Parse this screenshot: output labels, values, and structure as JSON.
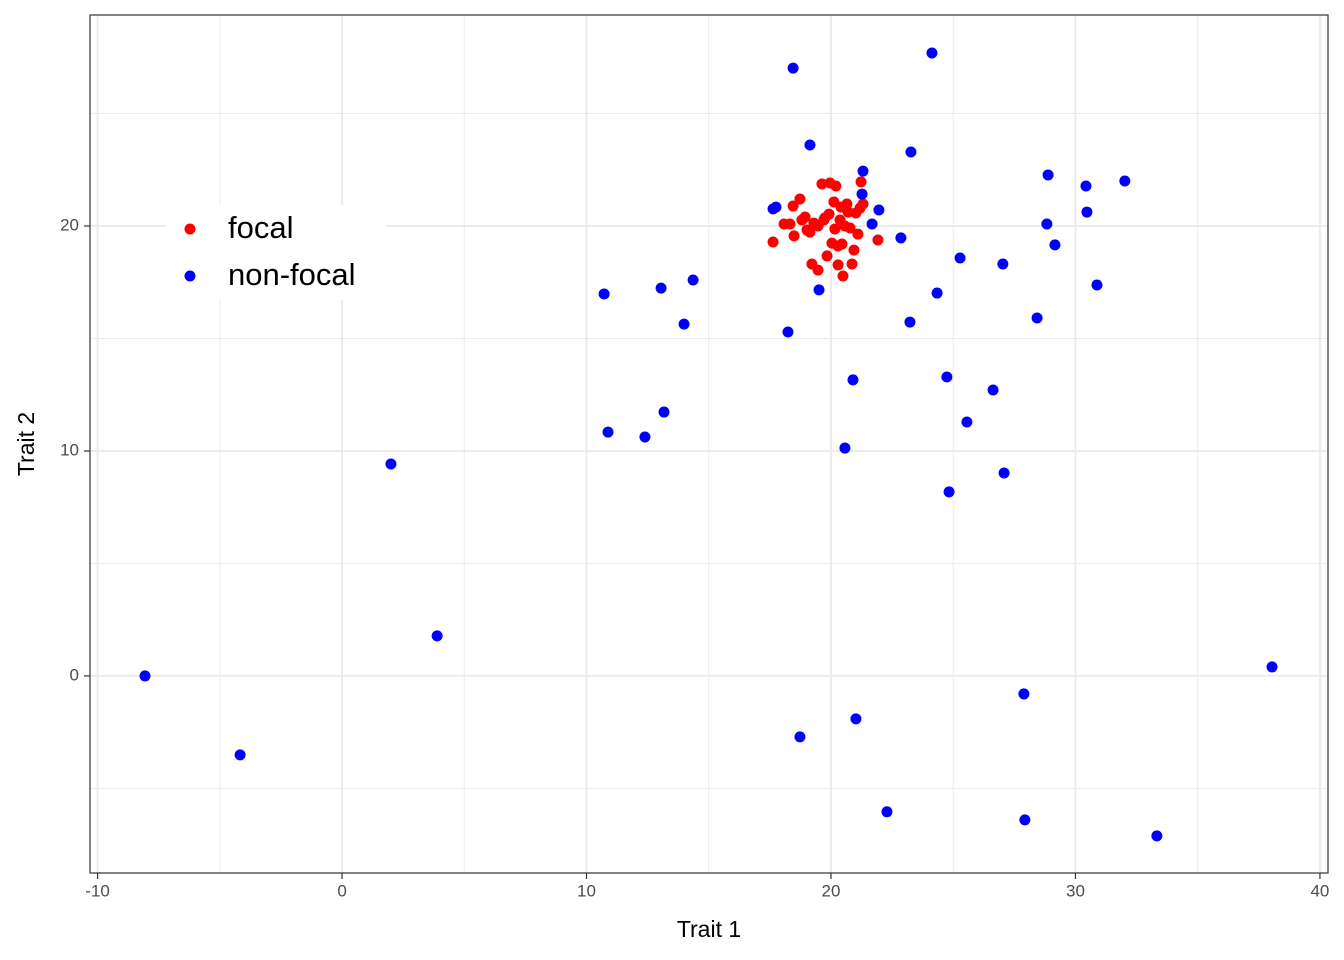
{
  "chart_data": {
    "type": "scatter",
    "xlabel": "Trait 1",
    "ylabel": "Trait 2",
    "xlim": [
      -10.31,
      40.33
    ],
    "ylim": [
      -8.76,
      29.38
    ],
    "xticks": [
      -10,
      0,
      10,
      20,
      30,
      40
    ],
    "yticks": [
      0,
      10,
      20
    ],
    "grid": true,
    "legend_position": "left",
    "series": [
      {
        "name": "focal",
        "color": "#ff0000",
        "x": [
          17.63,
          18.08,
          18.32,
          18.45,
          18.49,
          18.73,
          18.81,
          18.94,
          19.02,
          19.22,
          19.3,
          19.47,
          19.47,
          19.63,
          19.75,
          19.84,
          19.92,
          19.96,
          20.04,
          20.12,
          20.2,
          20.29,
          20.29,
          20.37,
          20.41,
          20.45,
          20.49,
          20.57,
          20.65,
          20.7,
          20.78,
          20.86,
          20.94,
          21.02,
          21.1,
          21.19,
          21.23,
          21.31,
          21.92,
          19.71,
          20.16,
          19.14
        ],
        "values": [
          19.29,
          20.09,
          20.09,
          20.89,
          19.56,
          21.2,
          20.27,
          20.4,
          19.82,
          18.31,
          20.13,
          18.04,
          20.0,
          21.87,
          20.36,
          18.67,
          20.53,
          21.91,
          19.24,
          21.07,
          21.78,
          18.27,
          19.11,
          20.27,
          20.84,
          19.2,
          17.78,
          20.0,
          20.98,
          20.62,
          19.91,
          18.31,
          18.93,
          20.58,
          19.64,
          20.8,
          21.96,
          20.98,
          19.38,
          20.27,
          19.87,
          19.73
        ]
      },
      {
        "name": "non-focal",
        "color": "#0000ff",
        "x": [
          -8.06,
          -4.17,
          2.0,
          3.89,
          10.72,
          10.88,
          12.39,
          13.05,
          13.17,
          13.99,
          14.36,
          17.63,
          17.75,
          18.24,
          18.45,
          18.73,
          19.14,
          19.51,
          20.57,
          20.9,
          21.02,
          21.27,
          21.31,
          21.68,
          21.96,
          22.29,
          22.86,
          23.23,
          23.27,
          24.13,
          24.34,
          24.74,
          24.83,
          25.28,
          25.56,
          26.63,
          27.03,
          27.08,
          27.89,
          27.93,
          28.43,
          28.83,
          28.88,
          29.16,
          30.43,
          30.47,
          30.88,
          32.02,
          33.33,
          38.04
        ],
        "values": [
          0.0,
          -3.51,
          9.42,
          1.78,
          16.98,
          10.84,
          10.62,
          17.24,
          11.73,
          15.64,
          17.6,
          20.76,
          20.84,
          15.29,
          27.02,
          -2.71,
          23.6,
          17.16,
          10.13,
          13.16,
          -1.91,
          21.42,
          22.44,
          20.09,
          20.71,
          -6.04,
          19.47,
          15.73,
          23.29,
          27.69,
          17.02,
          13.29,
          8.18,
          18.58,
          11.29,
          12.71,
          18.31,
          9.02,
          -0.8,
          -6.4,
          15.91,
          20.09,
          22.27,
          19.16,
          21.78,
          20.62,
          17.38,
          22.0,
          -7.11,
          0.4
        ]
      }
    ]
  }
}
